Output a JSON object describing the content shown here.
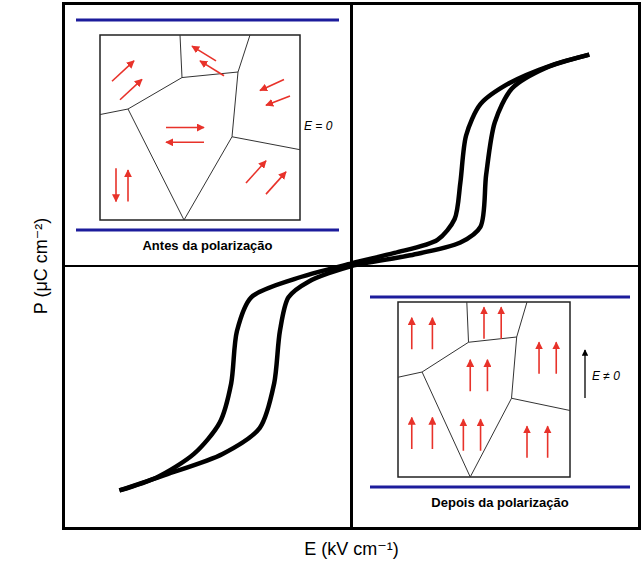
{
  "chart_data": {
    "type": "line",
    "x_label": "E (kV cm⁻¹)",
    "y_label": "P (μC cm⁻²)",
    "xlim": [
      -1,
      1
    ],
    "ylim": [
      -1,
      1
    ],
    "tick_labels": false,
    "grid": false,
    "series": [
      {
        "color": "#000000",
        "line_style": "solid",
        "x": [
          0.83,
          0.7,
          0.55,
          0.45,
          0.4,
          0.38,
          0.36,
          0.3,
          0.15,
          0.0,
          -0.2,
          -0.35,
          -0.4,
          -0.42,
          -0.46,
          -0.55,
          -0.68,
          -0.81
        ],
        "values": [
          0.81,
          0.77,
          0.7,
          0.62,
          0.5,
          0.32,
          0.18,
          0.1,
          0.05,
          0.01,
          -0.05,
          -0.12,
          -0.25,
          -0.45,
          -0.6,
          -0.72,
          -0.81,
          -0.86
        ]
      },
      {
        "color": "#000000",
        "line_style": "solid",
        "x": [
          -0.81,
          -0.65,
          -0.45,
          -0.32,
          -0.27,
          -0.25,
          -0.22,
          -0.15,
          0.0,
          0.2,
          0.38,
          0.45,
          0.47,
          0.5,
          0.56,
          0.68,
          0.83
        ],
        "values": [
          -0.86,
          -0.8,
          -0.72,
          -0.62,
          -0.45,
          -0.25,
          -0.12,
          -0.06,
          0.0,
          0.04,
          0.09,
          0.15,
          0.35,
          0.55,
          0.68,
          0.76,
          0.81
        ]
      }
    ],
    "insets": [
      {
        "caption": "Antes da polarização",
        "field": "E = 0"
      },
      {
        "caption": "Depois da polarização",
        "field": "E ≠ 0"
      }
    ]
  }
}
